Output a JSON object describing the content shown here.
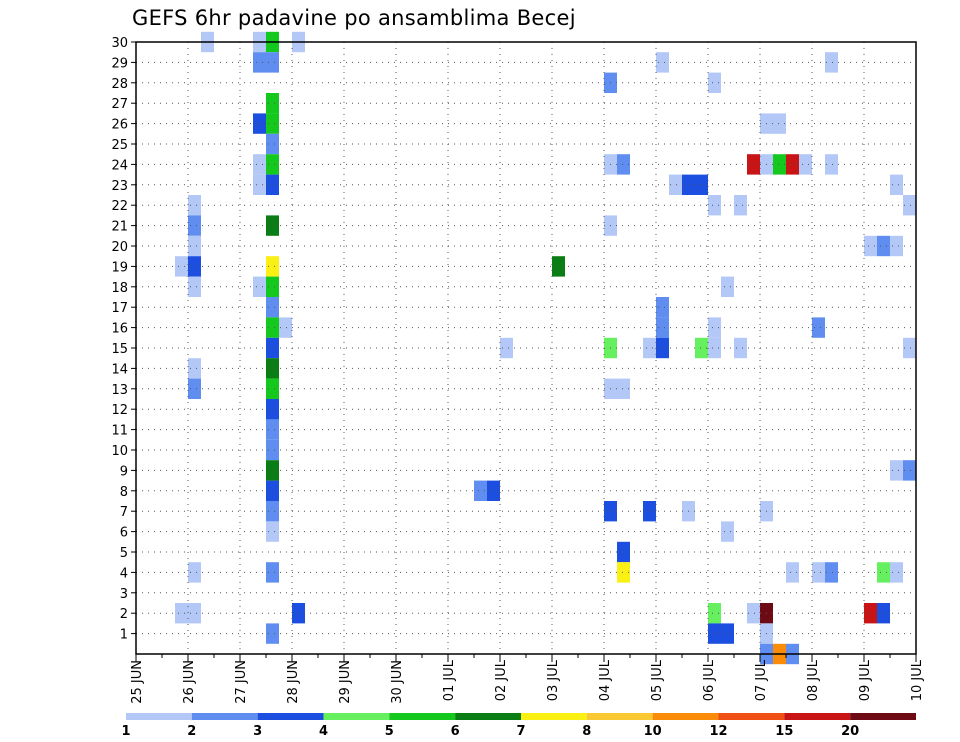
{
  "chart_data": {
    "type": "heatmap",
    "title": "GEFS 6hr padavine po ansamblima Becej",
    "xlabel": "",
    "ylabel": "",
    "x_ticks": [
      "25 JUN",
      "26 JUN",
      "27 JUN",
      "28 JUN",
      "29 JUN",
      "30 JUN",
      "01 JUL",
      "02 JUL",
      "03 JUL",
      "04 JUL",
      "05 JUL",
      "06 JUL",
      "07 JUL",
      "08 JUL",
      "09 JUL",
      "10 JUL"
    ],
    "y_ticks": [
      "1",
      "2",
      "3",
      "4",
      "5",
      "6",
      "7",
      "8",
      "9",
      "10",
      "11",
      "12",
      "13",
      "14",
      "15",
      "16",
      "17",
      "18",
      "19",
      "20",
      "21",
      "22",
      "23",
      "24",
      "25",
      "26",
      "27",
      "28",
      "29",
      "30"
    ],
    "x_range_days": [
      0,
      15
    ],
    "y_range": [
      0,
      30
    ],
    "grid": true,
    "legend": {
      "placement": "bottom",
      "labels": [
        "1",
        "2",
        "3",
        "4",
        "5",
        "6",
        "7",
        "8",
        "10",
        "12",
        "15",
        "20"
      ],
      "colors": [
        "#b4c8f8",
        "#5f8ef0",
        "#1c4fe0",
        "#66f060",
        "#14c81e",
        "#0a7d14",
        "#faf014",
        "#fac832",
        "#fa8c0a",
        "#f05014",
        "#c81414",
        "#6e0a14"
      ]
    },
    "cell_width_days": 0.25,
    "cells": [
      [
        1.25,
        30,
        1
      ],
      [
        2.25,
        30,
        1
      ],
      [
        2.5,
        30,
        5
      ],
      [
        3.0,
        30,
        1
      ],
      [
        2.25,
        29,
        2
      ],
      [
        2.5,
        29,
        2
      ],
      [
        10.0,
        29,
        1
      ],
      [
        13.25,
        29,
        1
      ],
      [
        9.0,
        28,
        2
      ],
      [
        11.0,
        28,
        1
      ],
      [
        2.5,
        27,
        5
      ],
      [
        2.25,
        26,
        3
      ],
      [
        2.5,
        26,
        5
      ],
      [
        12.0,
        26,
        1
      ],
      [
        12.25,
        26,
        1
      ],
      [
        2.5,
        25,
        2
      ],
      [
        2.25,
        24,
        1
      ],
      [
        2.5,
        24,
        5
      ],
      [
        9.0,
        24,
        1
      ],
      [
        9.25,
        24,
        2
      ],
      [
        11.75,
        24,
        11
      ],
      [
        12.0,
        24,
        1
      ],
      [
        12.25,
        24,
        5
      ],
      [
        12.5,
        24,
        11
      ],
      [
        12.75,
        24,
        1
      ],
      [
        13.25,
        24,
        1
      ],
      [
        2.25,
        23,
        1
      ],
      [
        2.5,
        23,
        3
      ],
      [
        10.25,
        23,
        1
      ],
      [
        10.5,
        23,
        3
      ],
      [
        10.75,
        23,
        3
      ],
      [
        14.5,
        23,
        1
      ],
      [
        1.0,
        22,
        1
      ],
      [
        11.0,
        22,
        1
      ],
      [
        11.5,
        22,
        1
      ],
      [
        14.75,
        22,
        1
      ],
      [
        1.0,
        21,
        2
      ],
      [
        2.5,
        21,
        6
      ],
      [
        9.0,
        21,
        1
      ],
      [
        1.0,
        20,
        1
      ],
      [
        14.0,
        20,
        1
      ],
      [
        14.25,
        20,
        2
      ],
      [
        14.5,
        20,
        1
      ],
      [
        0.75,
        19,
        1
      ],
      [
        1.0,
        19,
        3
      ],
      [
        2.5,
        19,
        7
      ],
      [
        8.0,
        19,
        6
      ],
      [
        1.0,
        18,
        1
      ],
      [
        2.25,
        18,
        1
      ],
      [
        2.5,
        18,
        5
      ],
      [
        11.25,
        18,
        1
      ],
      [
        2.5,
        17,
        2
      ],
      [
        10.0,
        17,
        2
      ],
      [
        2.5,
        16,
        5
      ],
      [
        2.75,
        16,
        1
      ],
      [
        10.0,
        16,
        2
      ],
      [
        11.0,
        16,
        1
      ],
      [
        13.0,
        16,
        2
      ],
      [
        2.5,
        15,
        3
      ],
      [
        7.0,
        15,
        1
      ],
      [
        9.0,
        15,
        4
      ],
      [
        9.75,
        15,
        1
      ],
      [
        10.0,
        15,
        3
      ],
      [
        10.75,
        15,
        4
      ],
      [
        11.0,
        15,
        1
      ],
      [
        11.5,
        15,
        1
      ],
      [
        14.75,
        15,
        1
      ],
      [
        1.0,
        14,
        1
      ],
      [
        2.5,
        14,
        6
      ],
      [
        1.0,
        13,
        2
      ],
      [
        2.5,
        13,
        5
      ],
      [
        9.0,
        13,
        1
      ],
      [
        9.25,
        13,
        1
      ],
      [
        2.5,
        12,
        3
      ],
      [
        2.5,
        11,
        2
      ],
      [
        2.5,
        10,
        2
      ],
      [
        2.5,
        9,
        6
      ],
      [
        14.5,
        9,
        1
      ],
      [
        14.75,
        9,
        2
      ],
      [
        2.5,
        8,
        3
      ],
      [
        6.5,
        8,
        2
      ],
      [
        6.75,
        8,
        3
      ],
      [
        2.5,
        7,
        2
      ],
      [
        9.0,
        7,
        3
      ],
      [
        9.75,
        7,
        3
      ],
      [
        10.5,
        7,
        1
      ],
      [
        12.0,
        7,
        1
      ],
      [
        2.5,
        6,
        1
      ],
      [
        11.25,
        6,
        1
      ],
      [
        9.25,
        5,
        3
      ],
      [
        1.0,
        4,
        1
      ],
      [
        2.5,
        4,
        2
      ],
      [
        9.25,
        4,
        7
      ],
      [
        12.5,
        4,
        1
      ],
      [
        13.0,
        4,
        1
      ],
      [
        13.25,
        4,
        2
      ],
      [
        14.25,
        4,
        4
      ],
      [
        14.5,
        4,
        1
      ],
      [
        0.75,
        2,
        1
      ],
      [
        1.0,
        2,
        1
      ],
      [
        3.0,
        2,
        3
      ],
      [
        11.0,
        2,
        4
      ],
      [
        11.75,
        2,
        1
      ],
      [
        12.0,
        2,
        12
      ],
      [
        14.0,
        2,
        11
      ],
      [
        14.25,
        2,
        3
      ],
      [
        2.5,
        1,
        2
      ],
      [
        11.0,
        1,
        3
      ],
      [
        11.25,
        1,
        3
      ],
      [
        12.0,
        1,
        1
      ],
      [
        12.0,
        0,
        2
      ],
      [
        12.25,
        0,
        9
      ],
      [
        12.5,
        0,
        2
      ]
    ]
  }
}
